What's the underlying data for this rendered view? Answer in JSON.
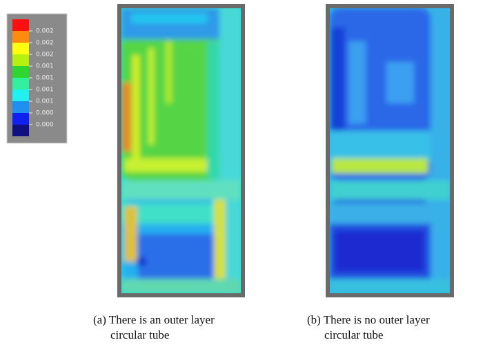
{
  "legend": {
    "labels": [
      "0.002",
      "0.002",
      "0.002",
      "0.001",
      "0.001",
      "0.001",
      "0.001",
      "0.000",
      "0.000"
    ]
  },
  "figures": [
    {
      "caption": [
        "(a) There is an outer layer",
        "circular tube"
      ]
    },
    {
      "caption": [
        "(b) There is no outer layer",
        "circular tube"
      ]
    }
  ]
}
